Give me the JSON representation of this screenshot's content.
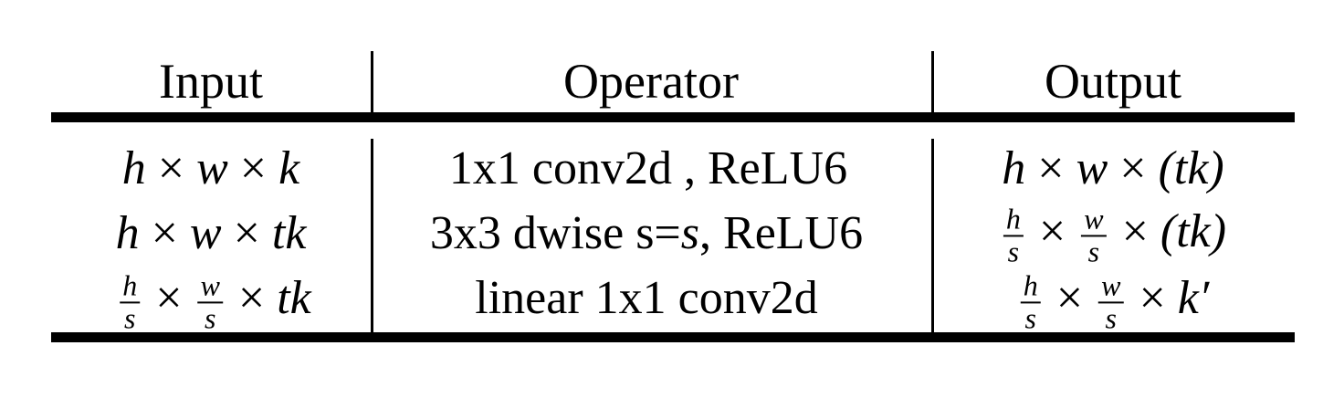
{
  "table": {
    "headers": [
      "Input",
      "Operator",
      "Output"
    ],
    "rows": [
      {
        "input": {
          "a": "h",
          "x1": "×",
          "b": "w",
          "x2": "×",
          "c": "k"
        },
        "operator": "1x1 conv2d , ReLU6",
        "output": {
          "a": "h",
          "x1": "×",
          "b": "w",
          "x2": "×",
          "c": "(tk)"
        }
      },
      {
        "input": {
          "a": "h",
          "x1": "×",
          "b": "w",
          "x2": "×",
          "c": "tk"
        },
        "operator": {
          "pre": "3x3 dwise s=",
          "var": "s",
          "post": ", ReLU6"
        },
        "output": {
          "f1_num": "h",
          "f1_den": "s",
          "x1": "×",
          "f2_num": "w",
          "f2_den": "s",
          "x2": "×",
          "c": "(tk)"
        }
      },
      {
        "input": {
          "f1_num": "h",
          "f1_den": "s",
          "x1": "×",
          "f2_num": "w",
          "f2_den": "s",
          "x2": "×",
          "c": "tk"
        },
        "operator": "linear 1x1 conv2d",
        "output": {
          "f1_num": "h",
          "f1_den": "s",
          "x1": "×",
          "f2_num": "w",
          "f2_den": "s",
          "x2": "×",
          "c": "k′"
        }
      }
    ]
  }
}
